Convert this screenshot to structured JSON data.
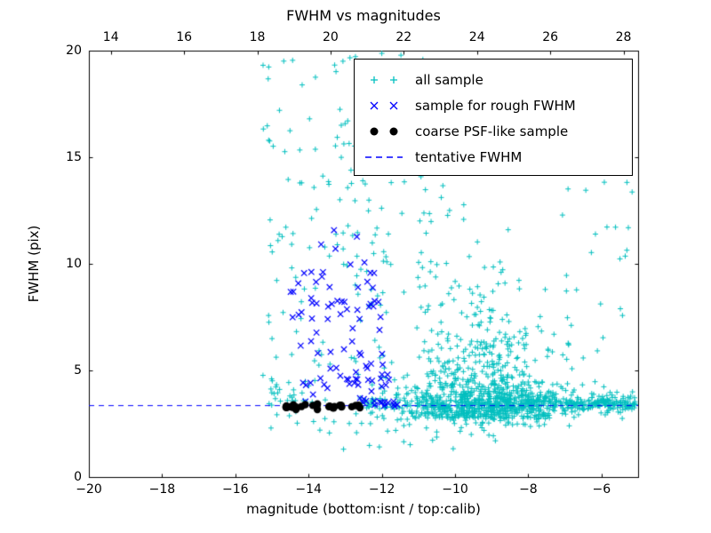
{
  "chart_data": {
    "type": "scatter",
    "title": "FWHM vs magnitudes",
    "xlabel": "magnitude (bottom:isnt / top:calib)",
    "ylabel": "FWHM (pix)",
    "xlim": [
      -20,
      -5
    ],
    "xlim_top": [
      13.4,
      28.4
    ],
    "ylim": [
      0,
      20
    ],
    "xticks_bottom": [
      -20,
      -18,
      -16,
      -14,
      -12,
      -10,
      -8,
      -6
    ],
    "xticks_top": [
      14,
      16,
      18,
      20,
      22,
      24,
      26,
      28
    ],
    "yticks": [
      0,
      5,
      10,
      15,
      20
    ],
    "grid": false,
    "background": "#ffffff",
    "tentative_fwhm": 3.35,
    "legend_position": "upper right inside",
    "legend": [
      {
        "label": "all sample",
        "marker": "plus",
        "color": "#00bfbf"
      },
      {
        "label": "sample for rough FWHM",
        "marker": "x",
        "color": "#0000ff"
      },
      {
        "label": "coarse PSF-like sample",
        "marker": "dot",
        "color": "#000000"
      },
      {
        "label": "tentative FWHM",
        "marker": "dash",
        "color": "#0000ff"
      }
    ],
    "seed": 42,
    "series": [
      {
        "name": "all sample",
        "marker": "plus",
        "color": "#00bfbf",
        "clusters": [
          {
            "n": 650,
            "x": {
              "dist": "normal",
              "mean": -9.3,
              "sd": 1.05,
              "min": -12.2,
              "max": -5.4
            },
            "y": {
              "dist": "exp",
              "base": 2.7,
              "scale": 1.9,
              "min": 1.5,
              "max": 20
            }
          },
          {
            "n": 200,
            "x": {
              "dist": "normal",
              "mean": -9.0,
              "sd": 1.3,
              "min": -12.0,
              "max": -5.2
            },
            "y": {
              "dist": "normal",
              "mean": 3.2,
              "sd": 0.7,
              "min": 1.0,
              "max": 5.5
            }
          },
          {
            "n": 330,
            "x": {
              "dist": "uniform",
              "min": -12.6,
              "max": -5.05
            },
            "y": {
              "dist": "normal",
              "mean": 3.45,
              "sd": 0.25,
              "min": 2.6,
              "max": 4.5
            }
          },
          {
            "n": 150,
            "x": {
              "dist": "uniform",
              "min": -8.6,
              "max": -5.05
            },
            "y": {
              "dist": "normal",
              "mean": 3.4,
              "sd": 0.15,
              "min": 3.0,
              "max": 3.9
            }
          },
          {
            "n": 150,
            "x": {
              "dist": "uniform",
              "min": -15.3,
              "max": -11.8
            },
            "y": {
              "dist": "uniform",
              "min": 1.3,
              "max": 20
            }
          },
          {
            "n": 60,
            "x": {
              "dist": "uniform",
              "min": -12.8,
              "max": -9.5
            },
            "y": {
              "dist": "uniform",
              "min": 8,
              "max": 20
            }
          },
          {
            "n": 25,
            "x": {
              "dist": "uniform",
              "min": -15.05,
              "max": -13.8
            },
            "y": {
              "dist": "normal",
              "mean": 3.8,
              "sd": 0.5,
              "min": 2.8,
              "max": 5.0
            }
          },
          {
            "n": 25,
            "x": {
              "dist": "uniform",
              "min": -7.6,
              "max": -5.1
            },
            "y": {
              "dist": "uniform",
              "min": 5,
              "max": 14
            }
          }
        ]
      },
      {
        "name": "sample for rough FWHM",
        "marker": "x",
        "color": "#0000ff",
        "clusters": [
          {
            "n": 62,
            "x": {
              "dist": "uniform",
              "min": -14.55,
              "max": -11.95
            },
            "y": {
              "dist": "normal",
              "mean": 7.8,
              "sd": 2.1,
              "min": 4.2,
              "max": 11.8
            }
          },
          {
            "n": 26,
            "x": {
              "dist": "uniform",
              "min": -14.3,
              "max": -11.8
            },
            "y": {
              "dist": "normal",
              "mean": 4.4,
              "sd": 0.55,
              "min": 3.5,
              "max": 5.8
            }
          },
          {
            "n": 14,
            "x": {
              "dist": "uniform",
              "min": -12.7,
              "max": -11.5
            },
            "y": {
              "dist": "normal",
              "mean": 3.5,
              "sd": 0.18,
              "min": 3.1,
              "max": 3.9
            }
          }
        ]
      },
      {
        "name": "coarse PSF-like sample",
        "marker": "dot",
        "color": "#000000",
        "clusters": [
          {
            "n": 28,
            "x": {
              "dist": "uniform",
              "min": -14.62,
              "max": -12.55
            },
            "y": {
              "dist": "normal",
              "mean": 3.3,
              "sd": 0.06,
              "min": 3.1,
              "max": 3.5
            }
          }
        ]
      }
    ],
    "line": {
      "name": "tentative FWHM",
      "style": "dashed",
      "color": "#0000ff",
      "y": 3.35
    }
  }
}
